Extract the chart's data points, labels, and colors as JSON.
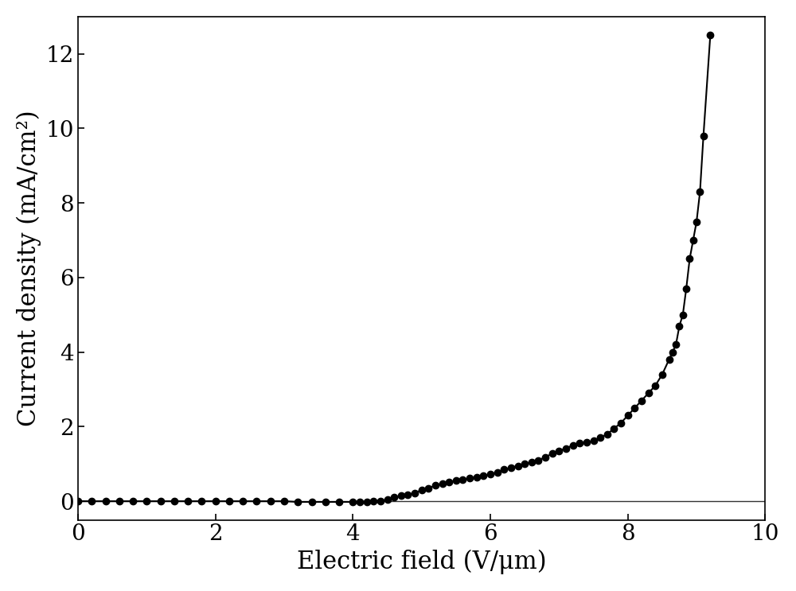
{
  "x": [
    0.0,
    0.2,
    0.4,
    0.6,
    0.8,
    1.0,
    1.2,
    1.4,
    1.6,
    1.8,
    2.0,
    2.2,
    2.4,
    2.6,
    2.8,
    3.0,
    3.2,
    3.4,
    3.6,
    3.8,
    4.0,
    4.1,
    4.2,
    4.3,
    4.4,
    4.5,
    4.6,
    4.7,
    4.8,
    4.9,
    5.0,
    5.1,
    5.2,
    5.3,
    5.4,
    5.5,
    5.6,
    5.7,
    5.8,
    5.9,
    6.0,
    6.1,
    6.2,
    6.3,
    6.4,
    6.5,
    6.6,
    6.7,
    6.8,
    6.9,
    7.0,
    7.1,
    7.2,
    7.3,
    7.4,
    7.5,
    7.6,
    7.7,
    7.8,
    7.9,
    8.0,
    8.1,
    8.2,
    8.3,
    8.4,
    8.5,
    8.6,
    8.65,
    8.7,
    8.75,
    8.8,
    8.85,
    8.9,
    8.95,
    9.0,
    9.05,
    9.1,
    9.2
  ],
  "y": [
    0.0,
    0.0,
    0.0,
    0.0,
    0.0,
    0.0,
    0.0,
    0.0,
    0.0,
    0.0,
    0.0,
    0.0,
    0.0,
    0.0,
    0.0,
    0.0,
    -0.02,
    -0.02,
    -0.02,
    -0.02,
    -0.02,
    -0.02,
    -0.02,
    0.0,
    0.0,
    0.05,
    0.1,
    0.15,
    0.18,
    0.22,
    0.3,
    0.35,
    0.42,
    0.48,
    0.52,
    0.55,
    0.58,
    0.62,
    0.65,
    0.68,
    0.72,
    0.78,
    0.85,
    0.9,
    0.95,
    1.0,
    1.05,
    1.1,
    1.18,
    1.28,
    1.35,
    1.42,
    1.5,
    1.55,
    1.58,
    1.62,
    1.7,
    1.8,
    1.95,
    2.1,
    2.3,
    2.5,
    2.7,
    2.9,
    3.1,
    3.4,
    3.8,
    4.0,
    4.2,
    4.7,
    5.0,
    5.7,
    6.5,
    7.0,
    7.5,
    8.3,
    9.8,
    12.5
  ],
  "line_color": "#000000",
  "marker_color": "#000000",
  "marker_size": 6,
  "line_width": 1.5,
  "xlabel": "Electric field (V/μm)",
  "ylabel": "Current density (mA/cm²)",
  "xlim": [
    0,
    10
  ],
  "ylim": [
    -0.5,
    13
  ],
  "xticks": [
    0,
    2,
    4,
    6,
    8,
    10
  ],
  "yticks": [
    0,
    2,
    4,
    6,
    8,
    10,
    12
  ],
  "xlabel_fontsize": 22,
  "ylabel_fontsize": 22,
  "tick_fontsize": 20,
  "background_color": "#ffffff",
  "figure_width": 10.0,
  "figure_height": 7.43
}
